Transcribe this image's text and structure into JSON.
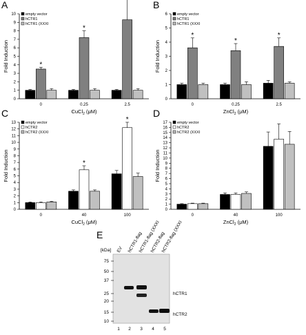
{
  "colors": {
    "empty_vector": "#000000",
    "wt": "#808080",
    "wt_ctr2": "#ffffff",
    "xxxi": "#c0c0c0"
  },
  "chart_data": [
    {
      "panel": "A",
      "type": "bar",
      "categories": [
        "0",
        "0.25",
        "2.5"
      ],
      "xlabel_main": "CuCl",
      "xlabel_sub": "2",
      "xlabel_unit": " (μM)",
      "ylabel": "Fold Induction",
      "ylim": [
        0,
        10
      ],
      "yticks": [
        "0",
        "1",
        "2",
        "3",
        "4",
        "5",
        "6",
        "7",
        "8",
        "9",
        "10"
      ],
      "legend": [
        "empty vector",
        "hCTR1",
        "hCTR1 (XXXI"
      ],
      "series": [
        {
          "name": "empty vector",
          "values": [
            1.0,
            1.0,
            1.0
          ],
          "errors": [
            0.1,
            0.1,
            0.1
          ],
          "color": "#000000"
        },
        {
          "name": "hCTR1",
          "values": [
            3.5,
            7.2,
            9.3
          ],
          "errors": [
            0.2,
            0.8,
            2.5
          ],
          "color": "#808080"
        },
        {
          "name": "hCTR1 (XXXI",
          "values": [
            1.0,
            1.0,
            1.0
          ],
          "errors": [
            0.2,
            0.2,
            0.2
          ],
          "color": "#c0c0c0"
        }
      ],
      "stars": [
        true,
        true,
        true
      ]
    },
    {
      "panel": "B",
      "type": "bar",
      "categories": [
        "0",
        "0.25",
        "2.5"
      ],
      "xlabel_main": "ZnCl",
      "xlabel_sub": "2",
      "xlabel_unit": " (μM)",
      "ylabel": "Fold Induction",
      "ylim": [
        0,
        6
      ],
      "yticks": [
        "0",
        "1",
        "2",
        "3",
        "4",
        "5",
        "6"
      ],
      "legend": [
        "empty vector",
        "hCTR1",
        "hCTR1 (XXXI"
      ],
      "series": [
        {
          "name": "empty vector",
          "values": [
            1.0,
            1.0,
            1.1
          ],
          "errors": [
            0.1,
            0.1,
            0.2
          ],
          "color": "#000000"
        },
        {
          "name": "hCTR1",
          "values": [
            3.6,
            3.4,
            3.7
          ],
          "errors": [
            0.7,
            0.5,
            0.6
          ],
          "color": "#808080"
        },
        {
          "name": "hCTR1 (XXXI",
          "values": [
            1.0,
            1.0,
            1.1
          ],
          "errors": [
            0.1,
            0.2,
            0.1
          ],
          "color": "#c0c0c0"
        }
      ],
      "stars": [
        true,
        true,
        true
      ]
    },
    {
      "panel": "C",
      "type": "bar",
      "categories": [
        "0",
        "40",
        "100"
      ],
      "xlabel_main": "CuCl",
      "xlabel_sub": "2",
      "xlabel_unit": " (μM)",
      "ylabel": "Fold Induction",
      "ylim": [
        0,
        13
      ],
      "yticks": [
        "0",
        "1",
        "2",
        "3",
        "4",
        "5",
        "6",
        "7",
        "8",
        "9",
        "10",
        "11",
        "12",
        "13"
      ],
      "legend": [
        "empty vector",
        "hCTR2",
        "hCTR2 (XXXI"
      ],
      "series": [
        {
          "name": "empty vector",
          "values": [
            1.0,
            2.7,
            5.3
          ],
          "errors": [
            0.1,
            0.2,
            0.5
          ],
          "color": "#000000"
        },
        {
          "name": "hCTR2",
          "values": [
            1.0,
            5.9,
            12.2
          ],
          "errors": [
            0.1,
            0.6,
            0.8
          ],
          "color": "#ffffff"
        },
        {
          "name": "hCTR2 (XXXI",
          "values": [
            1.1,
            2.7,
            4.9
          ],
          "errors": [
            0.1,
            0.2,
            0.5
          ],
          "color": "#c0c0c0"
        }
      ],
      "stars": [
        false,
        true,
        true
      ]
    },
    {
      "panel": "D",
      "type": "bar",
      "categories": [
        "0",
        "40",
        "100"
      ],
      "xlabel_main": "ZnCl",
      "xlabel_sub": "2",
      "xlabel_unit": " (μM)",
      "ylabel": "Fold Induction",
      "ylim": [
        0,
        17
      ],
      "yticks": [
        "0",
        "1",
        "2",
        "3",
        "4",
        "5",
        "6",
        "7",
        "8",
        "9",
        "10",
        "11",
        "12",
        "13",
        "14",
        "15",
        "16",
        "17"
      ],
      "legend": [
        "empty vector",
        "hCTR2",
        "hCTR2 (XXXI"
      ],
      "series": [
        {
          "name": "empty vector",
          "values": [
            1.0,
            2.9,
            12.3
          ],
          "errors": [
            0.1,
            0.3,
            2.8
          ],
          "color": "#000000"
        },
        {
          "name": "hCTR2",
          "values": [
            1.1,
            2.9,
            13.7
          ],
          "errors": [
            0.1,
            0.3,
            3.0
          ],
          "color": "#ffffff"
        },
        {
          "name": "hCTR2 (XXXI",
          "values": [
            1.1,
            3.1,
            12.7
          ],
          "errors": [
            0.1,
            0.3,
            2.5
          ],
          "color": "#c0c0c0"
        }
      ],
      "stars": [
        false,
        false,
        false
      ]
    }
  ],
  "panel_labels": [
    "A",
    "B",
    "C",
    "D",
    "E"
  ],
  "star_glyph": "*",
  "blot": {
    "unit_label": "[kDa]",
    "markers": [
      "75",
      "50",
      "37",
      "25",
      "20",
      "15",
      "10"
    ],
    "lane_headers": [
      "EV",
      "hCTR1-flag",
      "hCTR1-flag (XXXI",
      "hCTR2-flag",
      "hCTR2-flag (XXXI"
    ],
    "lane_numbers": [
      "1",
      "2",
      "3",
      "4",
      "5"
    ],
    "band_labels": [
      "hCTR1",
      "hCTR2"
    ]
  }
}
